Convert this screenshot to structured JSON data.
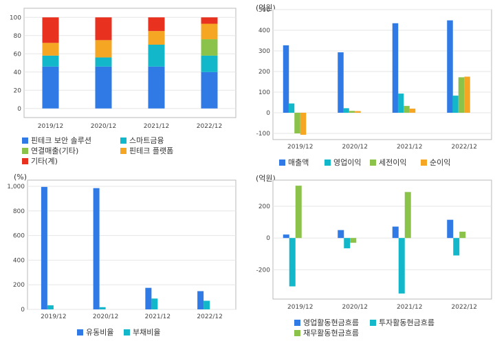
{
  "colors": {
    "blue": "#2f7ae5",
    "cyan": "#12b8c9",
    "green": "#8bc34a",
    "orange": "#f5a623",
    "red": "#e8321f"
  },
  "chart_data": [
    {
      "type": "bar",
      "stacked": true,
      "unit_label": "",
      "categories": [
        "2019/12",
        "2020/12",
        "2021/12",
        "2022/12"
      ],
      "series": [
        {
          "name": "핀테크 보안 솔루션",
          "color": "blue",
          "values": [
            46,
            46,
            46,
            40
          ]
        },
        {
          "name": "스마트금융",
          "color": "cyan",
          "values": [
            12,
            10,
            24,
            18
          ]
        },
        {
          "name": "연결매출(기타)",
          "color": "green",
          "values": [
            0,
            0,
            0,
            18
          ]
        },
        {
          "name": "핀테크 플랫폼",
          "color": "orange",
          "values": [
            14,
            19,
            15,
            17
          ]
        },
        {
          "name": "기타(계)",
          "color": "red",
          "values": [
            28,
            25,
            15,
            7
          ]
        }
      ],
      "yticks": [
        0,
        20,
        40,
        60,
        80,
        100
      ],
      "ylim": [
        -10,
        110
      ]
    },
    {
      "type": "bar",
      "unit_label": "(억원)",
      "categories": [
        "2019/12",
        "2020/12",
        "2021/12",
        "2022/12"
      ],
      "series": [
        {
          "name": "매출액",
          "color": "blue",
          "values": [
            327,
            293,
            434,
            448
          ]
        },
        {
          "name": "영업이익",
          "color": "cyan",
          "values": [
            45,
            22,
            93,
            83
          ]
        },
        {
          "name": "세전이익",
          "color": "green",
          "values": [
            -100,
            9,
            33,
            172
          ]
        },
        {
          "name": "순이익",
          "color": "orange",
          "values": [
            -107,
            8,
            20,
            175
          ]
        }
      ],
      "yticks": [
        -100,
        0,
        100,
        200,
        300,
        400,
        500
      ],
      "ylim": [
        -130,
        500
      ]
    },
    {
      "type": "bar",
      "unit_label": "(%)",
      "categories": [
        "2019/12",
        "2020/12",
        "2021/12",
        "2022/12"
      ],
      "series": [
        {
          "name": "유동비율",
          "color": "blue",
          "values": [
            995,
            985,
            175,
            148
          ]
        },
        {
          "name": "부채비율",
          "color": "cyan",
          "values": [
            33,
            18,
            88,
            70
          ]
        }
      ],
      "yticks": [
        0,
        200,
        400,
        600,
        800,
        "1,000"
      ],
      "ylim": [
        0,
        1050
      ]
    },
    {
      "type": "bar",
      "unit_label": "(억원)",
      "categories": [
        "2019/12",
        "2020/12",
        "2021/12",
        "2022/12"
      ],
      "series": [
        {
          "name": "영업활동현금흐름",
          "color": "blue",
          "values": [
            22,
            50,
            72,
            115
          ]
        },
        {
          "name": "투자활동현금흐름",
          "color": "cyan",
          "values": [
            -305,
            -65,
            -350,
            -110
          ]
        },
        {
          "name": "재무활동현금흐름",
          "color": "green",
          "values": [
            330,
            -30,
            290,
            40
          ]
        }
      ],
      "yticks": [
        -200,
        0,
        200
      ],
      "ylim": [
        -385,
        365
      ]
    }
  ]
}
